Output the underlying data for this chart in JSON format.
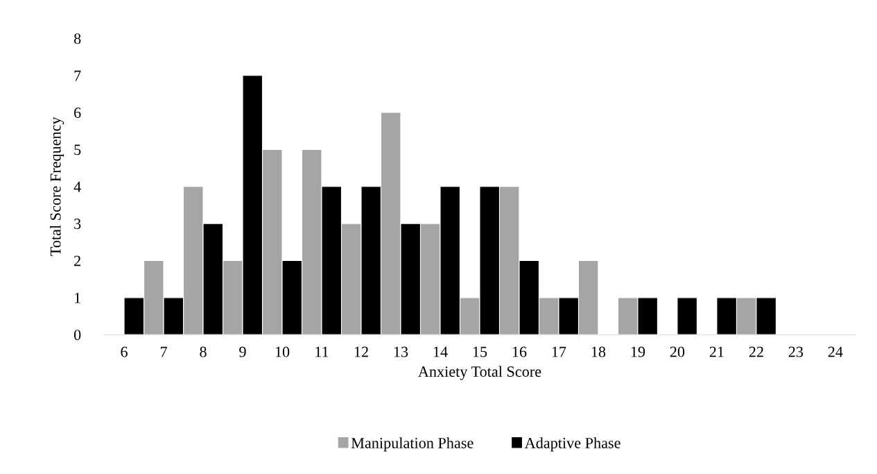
{
  "chart_data": {
    "type": "histogram",
    "xlabel": "Anxiety Total Score",
    "ylabel": "Total Score Frequency",
    "bins": [
      6,
      7,
      8,
      9,
      10,
      11,
      12,
      13,
      14,
      15,
      16,
      17,
      18,
      19,
      20,
      21,
      22,
      23,
      24
    ],
    "series": [
      {
        "name": "Manipulation Phase",
        "color": "#a5a5a5",
        "values": [
          2,
          4,
          2,
          5,
          5,
          3,
          6,
          3,
          1,
          4,
          1,
          2,
          1,
          0,
          0,
          1,
          0,
          0
        ]
      },
      {
        "name": "Adaptive Phase",
        "color": "#000000",
        "values": [
          1,
          1,
          3,
          7,
          2,
          4,
          4,
          3,
          4,
          4,
          2,
          1,
          0,
          1,
          1,
          1,
          1,
          0
        ]
      }
    ],
    "xlim": [
      5.5,
      24.5
    ],
    "xticks": [
      6,
      7,
      8,
      9,
      10,
      11,
      12,
      13,
      14,
      15,
      16,
      17,
      18,
      19,
      20,
      21,
      22,
      23,
      24
    ],
    "ylim": [
      0,
      8
    ],
    "yticks": [
      0,
      1,
      2,
      3,
      4,
      5,
      6,
      7,
      8
    ],
    "grid": false,
    "legend": "bottom"
  }
}
